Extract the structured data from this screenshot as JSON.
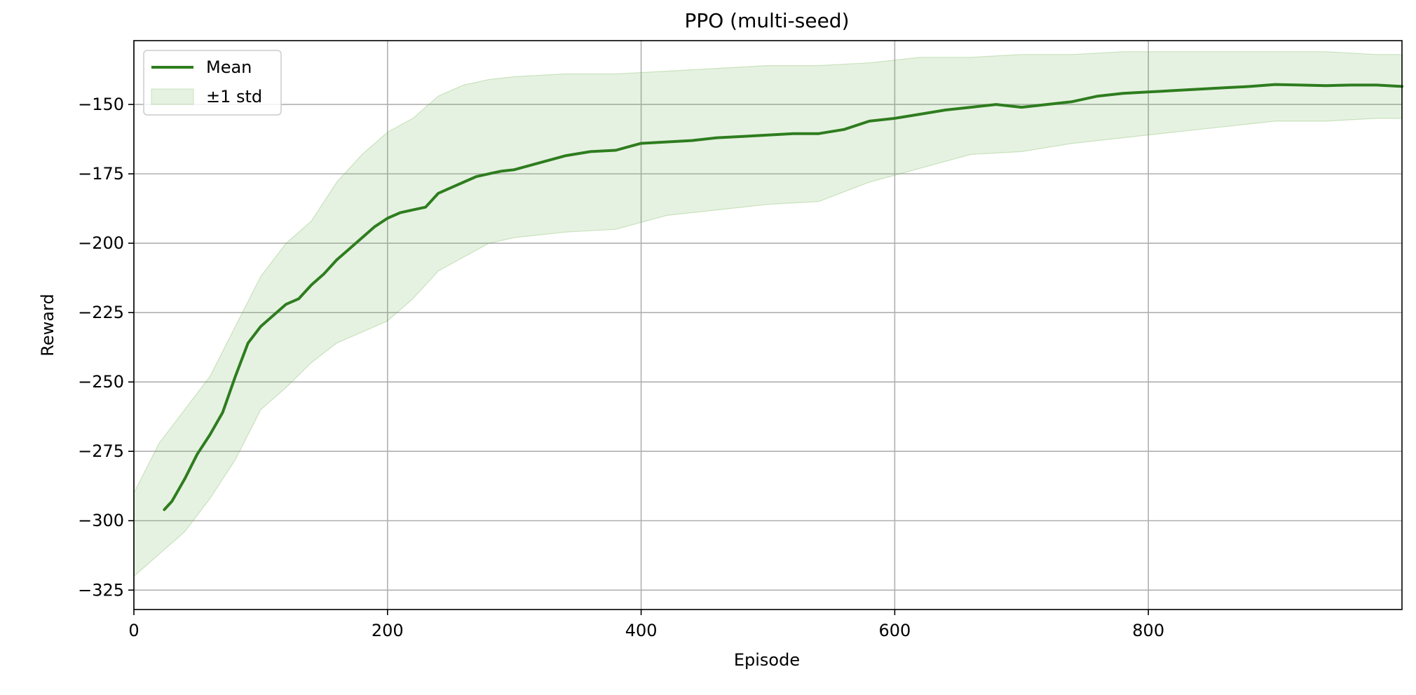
{
  "chart_data": {
    "type": "line",
    "title": "PPO (multi-seed)",
    "xlabel": "Episode",
    "ylabel": "Reward",
    "xlim": [
      0,
      1000
    ],
    "ylim": [
      -332,
      -127
    ],
    "xticks": [
      0,
      200,
      400,
      600,
      800
    ],
    "yticks": [
      -325,
      -300,
      -275,
      -250,
      -225,
      -200,
      -175,
      -150
    ],
    "grid": true,
    "legend_position": "top-left",
    "colors": {
      "line": "#2e7d1f",
      "band": "#6ab04c"
    },
    "series": [
      {
        "name": "Mean",
        "kind": "line",
        "x": [
          24,
          30,
          40,
          50,
          60,
          70,
          80,
          90,
          100,
          110,
          120,
          130,
          140,
          150,
          160,
          170,
          180,
          190,
          200,
          210,
          220,
          230,
          240,
          250,
          260,
          270,
          280,
          290,
          300,
          320,
          340,
          360,
          380,
          400,
          420,
          440,
          460,
          480,
          500,
          520,
          540,
          560,
          580,
          600,
          620,
          640,
          660,
          680,
          700,
          720,
          740,
          760,
          780,
          800,
          820,
          840,
          860,
          880,
          900,
          920,
          940,
          960,
          980,
          1000
        ],
        "values": [
          -296,
          -293,
          -285,
          -276,
          -269,
          -261,
          -248,
          -236,
          -230,
          -226,
          -222,
          -220,
          -215,
          -211,
          -206,
          -202,
          -198,
          -194,
          -191,
          -189,
          -188,
          -187,
          -182,
          -180,
          -178,
          -176,
          -175,
          -174,
          -173.5,
          -171,
          -168.5,
          -167,
          -166.5,
          -164,
          -163.5,
          -163,
          -162,
          -161.5,
          -161,
          -160.5,
          -160.5,
          -159,
          -156,
          -155,
          -153.5,
          -152,
          -151,
          -150,
          -151,
          -150,
          -149,
          -147,
          -146,
          -145.5,
          -145,
          -144.5,
          -144,
          -143.5,
          -142.8,
          -143,
          -143.2,
          -143,
          -143,
          -143.5
        ]
      },
      {
        "name": "±1 std",
        "kind": "band",
        "x": [
          0,
          20,
          40,
          60,
          80,
          100,
          120,
          140,
          160,
          180,
          200,
          220,
          240,
          260,
          280,
          300,
          340,
          380,
          420,
          460,
          500,
          540,
          580,
          620,
          660,
          700,
          740,
          780,
          820,
          860,
          900,
          940,
          980,
          1000
        ],
        "upper": [
          -290,
          -272,
          -260,
          -248,
          -230,
          -212,
          -200,
          -192,
          -178,
          -168,
          -160,
          -155,
          -147,
          -143,
          -141,
          -140,
          -139,
          -139,
          -138,
          -137,
          -136,
          -136,
          -135,
          -133,
          -133,
          -132,
          -132,
          -131,
          -131,
          -131,
          -131,
          -131,
          -132,
          -132
        ],
        "lower": [
          -320,
          -312,
          -304,
          -292,
          -278,
          -260,
          -252,
          -243,
          -236,
          -232,
          -228,
          -220,
          -210,
          -205,
          -200,
          -198,
          -196,
          -195,
          -190,
          -188,
          -186,
          -185,
          -178,
          -173,
          -168,
          -167,
          -164,
          -162,
          -160,
          -158,
          -156,
          -156,
          -155,
          -155
        ]
      }
    ]
  }
}
